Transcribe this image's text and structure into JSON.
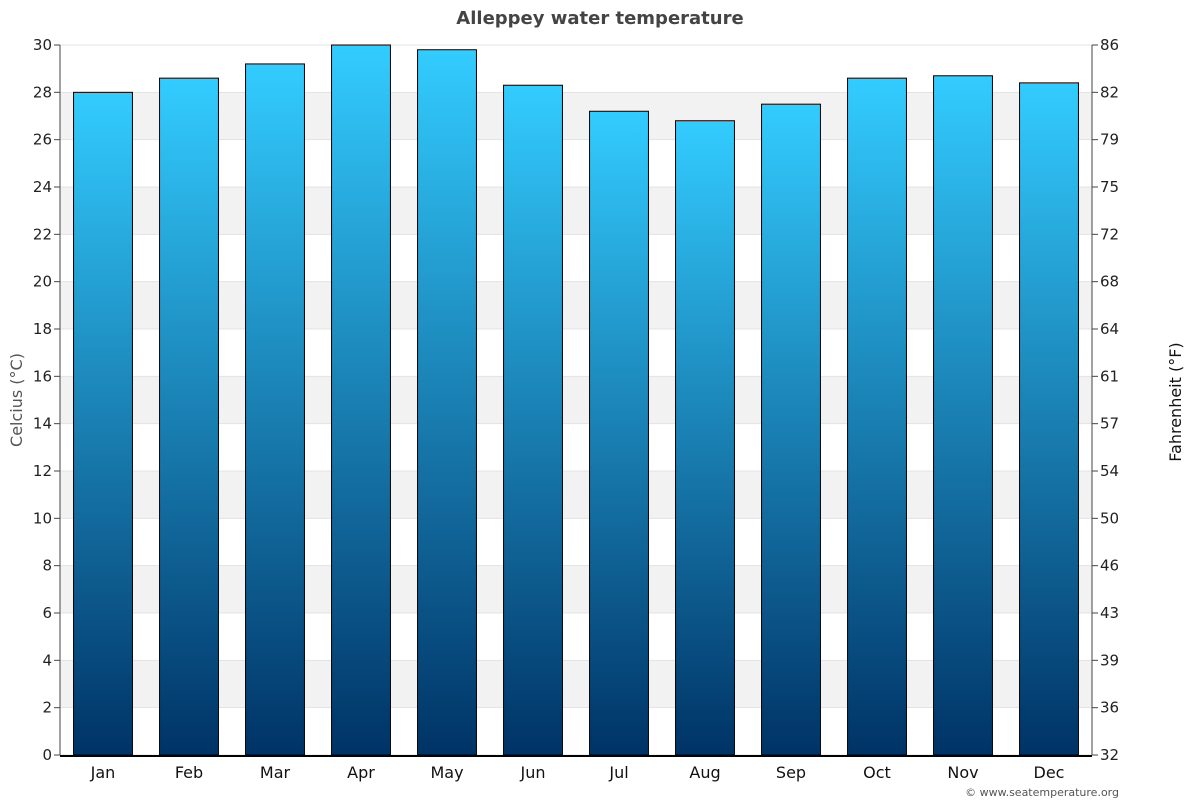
{
  "chart_data": {
    "type": "bar",
    "title": "Alleppey water temperature",
    "categories": [
      "Jan",
      "Feb",
      "Mar",
      "Apr",
      "May",
      "Jun",
      "Jul",
      "Aug",
      "Sep",
      "Oct",
      "Nov",
      "Dec"
    ],
    "values": [
      28.0,
      28.6,
      29.2,
      30.0,
      29.8,
      28.3,
      27.2,
      26.8,
      27.5,
      28.6,
      28.7,
      28.4
    ],
    "ylabel": "Celcius (°C)",
    "ylabel_right": "Fahrenheit (°F)",
    "ylim": [
      0,
      30
    ],
    "yticks": [
      "0",
      "2",
      "4",
      "6",
      "8",
      "10",
      "12",
      "14",
      "16",
      "18",
      "20",
      "22",
      "24",
      "26",
      "28",
      "30"
    ],
    "yticks_right": [
      "32",
      "36",
      "39",
      "43",
      "46",
      "50",
      "54",
      "57",
      "61",
      "64",
      "68",
      "72",
      "75",
      "79",
      "82",
      "86"
    ],
    "grid": true,
    "bar_color_top": "#33ccff",
    "bar_color_bottom": "#003366",
    "band_color": "#f2f2f2"
  },
  "credit": "© www.seatemperature.org"
}
